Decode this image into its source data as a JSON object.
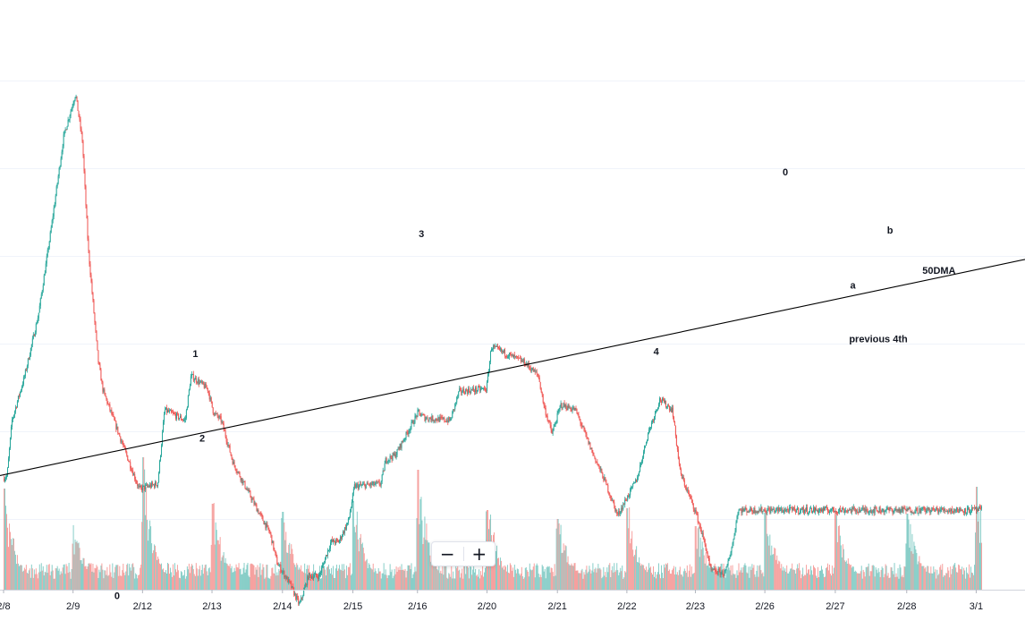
{
  "chart_data": {
    "type": "candlestick",
    "x_ticks": [
      "2/8",
      "2/9",
      "2/12",
      "2/13",
      "2/14",
      "2/15",
      "2/16",
      "2/20",
      "2/21",
      "2/22",
      "2/23",
      "2/26",
      "2/27",
      "2/28",
      "3/1"
    ],
    "price_path": [
      [
        0,
        0.245
      ],
      [
        0.4,
        0.25
      ],
      [
        0.9,
        0.355
      ],
      [
        2.2,
        0.44
      ],
      [
        3.6,
        0.555
      ],
      [
        4.8,
        0.705
      ],
      [
        6.2,
        0.895
      ],
      [
        7.4,
        0.975
      ],
      [
        8.1,
        0.885
      ],
      [
        8.7,
        0.68
      ],
      [
        9.7,
        0.47
      ],
      [
        10.2,
        0.412
      ],
      [
        12.5,
        0.295
      ],
      [
        13.9,
        0.225
      ],
      [
        15.8,
        0.235
      ],
      [
        16.5,
        0.375
      ],
      [
        18.6,
        0.355
      ],
      [
        19.2,
        0.44
      ],
      [
        20.9,
        0.415
      ],
      [
        21.5,
        0.37
      ],
      [
        22.3,
        0.355
      ],
      [
        23.5,
        0.275
      ],
      [
        26.0,
        0.185
      ],
      [
        27.3,
        0.14
      ],
      [
        28.0,
        0.085
      ],
      [
        29.3,
        0.045
      ],
      [
        30.3,
        0.005
      ],
      [
        31.2,
        0.06
      ],
      [
        32.3,
        0.06
      ],
      [
        33.5,
        0.125
      ],
      [
        34.3,
        0.125
      ],
      [
        35.3,
        0.165
      ],
      [
        35.9,
        0.23
      ],
      [
        38.6,
        0.235
      ],
      [
        39.1,
        0.28
      ],
      [
        40.1,
        0.29
      ],
      [
        42.4,
        0.37
      ],
      [
        43.1,
        0.36
      ],
      [
        45.7,
        0.355
      ],
      [
        46.6,
        0.41
      ],
      [
        49.4,
        0.415
      ],
      [
        49.9,
        0.495
      ],
      [
        53.3,
        0.465
      ],
      [
        54.7,
        0.44
      ],
      [
        55.3,
        0.38
      ],
      [
        56.1,
        0.33
      ],
      [
        57.0,
        0.385
      ],
      [
        58.5,
        0.375
      ],
      [
        60.2,
        0.295
      ],
      [
        61.5,
        0.24
      ],
      [
        62.8,
        0.175
      ],
      [
        64.8,
        0.245
      ],
      [
        65.9,
        0.33
      ],
      [
        67.1,
        0.395
      ],
      [
        68.4,
        0.375
      ],
      [
        69.2,
        0.255
      ],
      [
        70.8,
        0.18
      ],
      [
        71.8,
        0.115
      ],
      [
        72.3,
        0.07
      ],
      [
        73.8,
        0.065
      ],
      [
        74.6,
        0.125
      ],
      [
        75.1,
        0.185
      ]
    ],
    "candle_seed": 7,
    "volume_bars": "intraday, spikes at each session open",
    "annotations": [
      {
        "text": "0",
        "x": 11.6,
        "y": 0.016
      },
      {
        "text": "1",
        "x": 19.6,
        "y": 0.475
      },
      {
        "text": "2",
        "x": 20.3,
        "y": 0.315
      },
      {
        "text": "3",
        "x": 42.7,
        "y": 0.703
      },
      {
        "text": "4",
        "x": 66.7,
        "y": 0.48
      },
      {
        "text": "0",
        "x": 79.9,
        "y": 0.82
      },
      {
        "text": "a",
        "x": 86.8,
        "y": 0.605
      },
      {
        "text": "b",
        "x": 90.6,
        "y": 0.71
      },
      {
        "text": "50DMA",
        "x": 95.6,
        "y": 0.633
      },
      {
        "text": "previous 4th",
        "x": 89.4,
        "y": 0.503
      }
    ],
    "trendline": {
      "label": "50DMA",
      "from": [
        0,
        0.252
      ],
      "to": [
        97.6,
        0.634
      ]
    },
    "up_color": "#26a69a",
    "down_color": "#ef5350",
    "grid": "horizontal",
    "legend": "none"
  },
  "zoom": {
    "minus_label": "−",
    "plus_label": "+"
  }
}
